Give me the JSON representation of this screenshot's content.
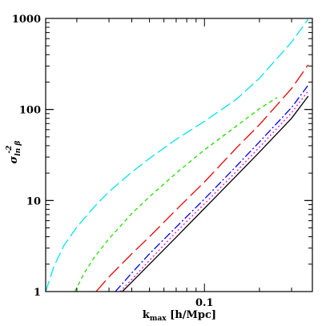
{
  "chart_data": {
    "type": "line",
    "x_scale": "log",
    "y_scale": "log",
    "xlim": [
      0.0135,
      0.39
    ],
    "ylim": [
      1,
      1000
    ],
    "xlabel": {
      "main": "k",
      "subscript": "max",
      "unit": " [h/Mpc]"
    },
    "ylabel": {
      "main": "σ",
      "subscript": "ln β",
      "superscript": "-2"
    },
    "x_tick_labels": [
      {
        "value": 0.1,
        "label": "0.1"
      }
    ],
    "y_tick_labels": [
      {
        "value": 1,
        "label": "1"
      },
      {
        "value": 10,
        "label": "10"
      },
      {
        "value": 100,
        "label": "100"
      },
      {
        "value": 1000,
        "label": "1000"
      }
    ],
    "grid": false,
    "legend": "none",
    "series": [
      {
        "color": "#00e5ee",
        "dash": "14,5",
        "x": [
          0.0135,
          0.015,
          0.017,
          0.02,
          0.025,
          0.03,
          0.04,
          0.05,
          0.07,
          0.1,
          0.15,
          0.2,
          0.3,
          0.37
        ],
        "y": [
          1.0,
          1.9,
          3.2,
          5.1,
          8.6,
          12.5,
          20.5,
          29.0,
          47.0,
          74.0,
          130.0,
          220.0,
          550.0,
          980.0
        ]
      },
      {
        "color": "#22dd00",
        "dash": "5,4",
        "x": [
          0.0195,
          0.022,
          0.025,
          0.03,
          0.04,
          0.05,
          0.07,
          0.1,
          0.15,
          0.2,
          0.25
        ],
        "y": [
          1.0,
          1.6,
          2.4,
          3.8,
          7.2,
          11.0,
          20.0,
          36.0,
          66.0,
          102.0,
          135.0
        ]
      },
      {
        "color": "#ee0000",
        "dash": "18,6",
        "x": [
          0.0255,
          0.03,
          0.04,
          0.05,
          0.07,
          0.1,
          0.15,
          0.2,
          0.3,
          0.37
        ],
        "y": [
          1.0,
          1.45,
          2.6,
          4.0,
          7.9,
          16.0,
          38.0,
          68.0,
          170.0,
          310.0
        ]
      },
      {
        "color": "#0000ff",
        "dash": "10,3,2,3",
        "x": [
          0.0325,
          0.04,
          0.05,
          0.07,
          0.1,
          0.15,
          0.2,
          0.3,
          0.37
        ],
        "y": [
          1.0,
          1.6,
          2.6,
          5.1,
          10.4,
          24.0,
          44.0,
          105.0,
          185.0
        ]
      },
      {
        "color": "#ee00ee",
        "dash": "2,3",
        "x": [
          0.0345,
          0.04,
          0.05,
          0.07,
          0.1,
          0.15,
          0.2,
          0.3,
          0.37
        ],
        "y": [
          1.0,
          1.36,
          2.2,
          4.5,
          9.2,
          21.0,
          38.5,
          92.0,
          160.0
        ]
      },
      {
        "color": "#000000",
        "dash": "",
        "x": [
          0.0355,
          0.04,
          0.05,
          0.07,
          0.1,
          0.15,
          0.2,
          0.3,
          0.37
        ],
        "y": [
          1.0,
          1.27,
          2.0,
          3.95,
          8.2,
          18.8,
          34.0,
          80.0,
          140.0
        ]
      }
    ]
  }
}
